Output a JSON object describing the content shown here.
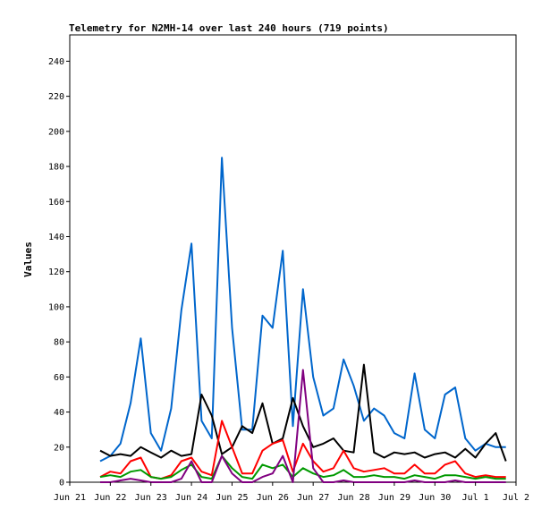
{
  "chart_data": {
    "type": "line",
    "title": "Telemetry for N2MH-14 over last 240 hours (719 points)",
    "xlabel": "",
    "ylabel": "Values",
    "xlim": [
      "2023-06-21",
      "2023-07-02"
    ],
    "ylim": [
      0,
      255
    ],
    "x_ticks": [
      "Jun 21",
      "Jun 22",
      "Jun 23",
      "Jun 24",
      "Jun 25",
      "Jun 26",
      "Jun 27",
      "Jun 28",
      "Jun 29",
      "Jun 30",
      "Jul 1",
      "Jul 2"
    ],
    "y_ticks": [
      0,
      20,
      40,
      60,
      80,
      100,
      120,
      140,
      160,
      180,
      200,
      220,
      240
    ],
    "grid": false,
    "legend": "none",
    "series_colors": [
      "#0066cc",
      "#000000",
      "#ff0000",
      "#009900",
      "#800080"
    ],
    "x": [
      "2023-06-21 18:00",
      "2023-06-22 00:00",
      "2023-06-22 06:00",
      "2023-06-22 12:00",
      "2023-06-22 18:00",
      "2023-06-23 00:00",
      "2023-06-23 06:00",
      "2023-06-23 12:00",
      "2023-06-23 18:00",
      "2023-06-24 00:00",
      "2023-06-24 06:00",
      "2023-06-24 12:00",
      "2023-06-24 18:00",
      "2023-06-25 00:00",
      "2023-06-25 06:00",
      "2023-06-25 12:00",
      "2023-06-25 18:00",
      "2023-06-26 00:00",
      "2023-06-26 06:00",
      "2023-06-26 12:00",
      "2023-06-26 18:00",
      "2023-06-27 00:00",
      "2023-06-27 06:00",
      "2023-06-27 12:00",
      "2023-06-27 18:00",
      "2023-06-28 00:00",
      "2023-06-28 06:00",
      "2023-06-28 12:00",
      "2023-06-28 18:00",
      "2023-06-29 00:00",
      "2023-06-29 06:00",
      "2023-06-29 12:00",
      "2023-06-29 18:00",
      "2023-06-30 00:00",
      "2023-06-30 06:00",
      "2023-06-30 12:00",
      "2023-06-30 18:00",
      "2023-07-01 00:00",
      "2023-07-01 06:00",
      "2023-07-01 12:00",
      "2023-07-01 18:00"
    ],
    "series": [
      {
        "values": [
          12,
          15,
          22,
          45,
          82,
          28,
          18,
          42,
          98,
          136,
          35,
          25,
          185,
          88,
          30,
          30,
          95,
          88,
          132,
          32,
          110,
          60,
          38,
          42,
          70,
          55,
          35,
          42,
          38,
          28,
          25,
          62,
          30,
          25,
          50,
          54,
          25,
          18,
          22,
          20,
          20
        ]
      },
      {
        "values": [
          18,
          15,
          16,
          15,
          20,
          17,
          14,
          18,
          15,
          16,
          50,
          38,
          16,
          20,
          32,
          28,
          45,
          22,
          25,
          48,
          32,
          20,
          22,
          25,
          18,
          17,
          67,
          17,
          14,
          17,
          16,
          17,
          14,
          16,
          17,
          14,
          19,
          14,
          22,
          28,
          12
        ]
      },
      {
        "values": [
          3,
          6,
          5,
          12,
          14,
          3,
          2,
          4,
          12,
          14,
          6,
          4,
          35,
          20,
          5,
          5,
          18,
          22,
          24,
          6,
          22,
          12,
          6,
          8,
          18,
          8,
          6,
          7,
          8,
          5,
          5,
          10,
          5,
          5,
          10,
          12,
          5,
          3,
          4,
          3,
          3
        ]
      },
      {
        "values": [
          3,
          4,
          3,
          6,
          7,
          3,
          2,
          3,
          7,
          10,
          3,
          2,
          15,
          8,
          3,
          2,
          10,
          8,
          10,
          3,
          8,
          5,
          3,
          4,
          7,
          3,
          3,
          4,
          3,
          3,
          2,
          4,
          3,
          2,
          4,
          4,
          3,
          2,
          3,
          2,
          2
        ]
      },
      {
        "values": [
          0,
          0,
          1,
          2,
          1,
          0,
          0,
          0,
          2,
          12,
          0,
          0,
          15,
          5,
          0,
          0,
          3,
          5,
          15,
          0,
          64,
          8,
          0,
          0,
          1,
          0,
          0,
          0,
          0,
          0,
          0,
          1,
          0,
          0,
          0,
          1,
          0,
          0,
          0,
          0,
          0
        ]
      }
    ]
  }
}
